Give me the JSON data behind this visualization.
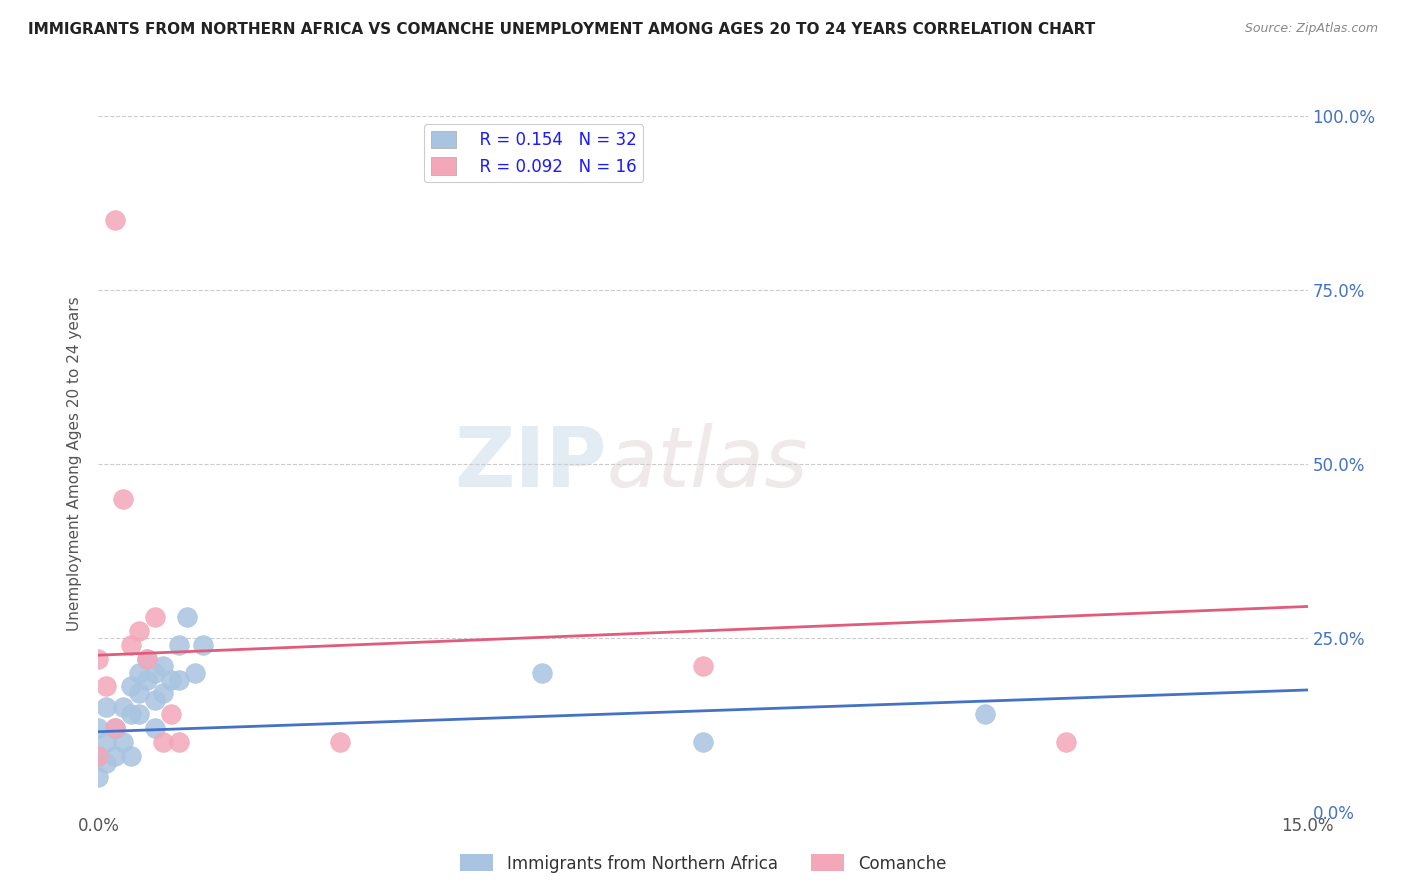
{
  "title": "IMMIGRANTS FROM NORTHERN AFRICA VS COMANCHE UNEMPLOYMENT AMONG AGES 20 TO 24 YEARS CORRELATION CHART",
  "source": "Source: ZipAtlas.com",
  "ylabel": "Unemployment Among Ages 20 to 24 years",
  "xlim": [
    0.0,
    0.15
  ],
  "ylim": [
    0.0,
    1.0
  ],
  "yticks": [
    0.0,
    0.25,
    0.5,
    0.75,
    1.0
  ],
  "ytick_labels": [
    "0.0%",
    "25.0%",
    "50.0%",
    "75.0%",
    "100.0%"
  ],
  "xticks": [
    0.0,
    0.15
  ],
  "xtick_labels": [
    "0.0%",
    "15.0%"
  ],
  "legend_r_blue": "0.154",
  "legend_n_blue": "32",
  "legend_r_pink": "0.092",
  "legend_n_pink": "16",
  "blue_color": "#a8c4e0",
  "pink_color": "#f4a7b9",
  "trendline_blue": "#4472c4",
  "trendline_pink": "#e05c7a",
  "watermark_zip": "ZIP",
  "watermark_atlas": "atlas",
  "blue_scatter_x": [
    0.0,
    0.0,
    0.0,
    0.001,
    0.001,
    0.001,
    0.002,
    0.002,
    0.003,
    0.003,
    0.004,
    0.004,
    0.004,
    0.005,
    0.005,
    0.005,
    0.006,
    0.006,
    0.007,
    0.007,
    0.007,
    0.008,
    0.008,
    0.009,
    0.01,
    0.01,
    0.011,
    0.012,
    0.013,
    0.055,
    0.075,
    0.11
  ],
  "blue_scatter_y": [
    0.05,
    0.08,
    0.12,
    0.07,
    0.1,
    0.15,
    0.12,
    0.08,
    0.15,
    0.1,
    0.18,
    0.14,
    0.08,
    0.17,
    0.2,
    0.14,
    0.22,
    0.19,
    0.2,
    0.16,
    0.12,
    0.21,
    0.17,
    0.19,
    0.24,
    0.19,
    0.28,
    0.2,
    0.24,
    0.2,
    0.1,
    0.14
  ],
  "pink_scatter_x": [
    0.0,
    0.0,
    0.001,
    0.002,
    0.002,
    0.003,
    0.004,
    0.005,
    0.006,
    0.007,
    0.008,
    0.009,
    0.01,
    0.03,
    0.075,
    0.12
  ],
  "pink_scatter_y": [
    0.22,
    0.08,
    0.18,
    0.12,
    0.85,
    0.45,
    0.24,
    0.26,
    0.22,
    0.28,
    0.1,
    0.14,
    0.1,
    0.1,
    0.21,
    0.1
  ],
  "background_color": "#ffffff",
  "grid_color": "#cccccc"
}
